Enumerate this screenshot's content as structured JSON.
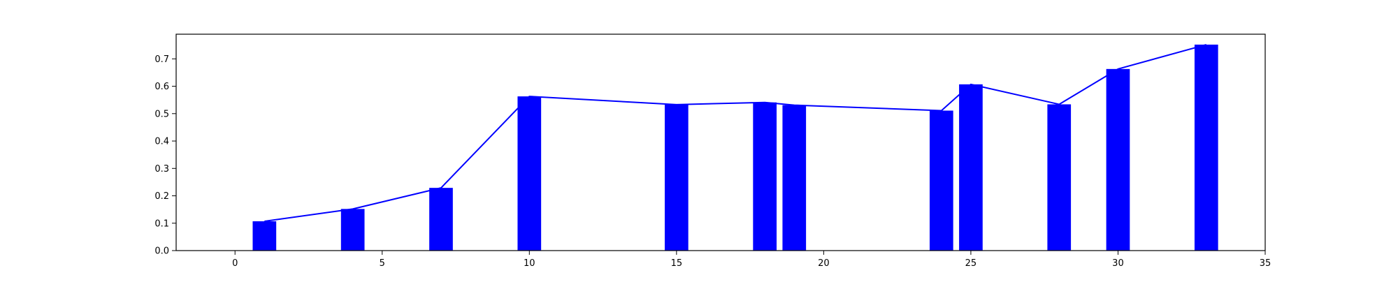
{
  "chart_data": {
    "type": "bar",
    "title": "",
    "xlabel": "",
    "ylabel": "",
    "xlim": [
      -2,
      35
    ],
    "ylim": [
      0,
      0.79
    ],
    "x_ticks": [
      0,
      5,
      10,
      15,
      20,
      25,
      30,
      35
    ],
    "y_ticks": [
      0.0,
      0.1,
      0.2,
      0.3,
      0.4,
      0.5,
      0.6,
      0.7
    ],
    "grid": false,
    "legend": "none",
    "bar_color": "#0000ff",
    "line_color": "#0000ff",
    "bar_width": 0.8,
    "x": [
      1,
      4,
      7,
      10,
      15,
      18,
      19,
      24,
      25,
      28,
      30,
      33
    ],
    "values": [
      0.107,
      0.152,
      0.229,
      0.563,
      0.533,
      0.541,
      0.531,
      0.511,
      0.607,
      0.534,
      0.663,
      0.752
    ],
    "overlay": {
      "type": "line",
      "x": [
        1,
        4,
        7,
        10,
        15,
        18,
        19,
        24,
        25,
        28,
        30,
        33
      ],
      "values": [
        0.107,
        0.152,
        0.229,
        0.563,
        0.533,
        0.541,
        0.531,
        0.511,
        0.607,
        0.534,
        0.663,
        0.752
      ]
    }
  }
}
